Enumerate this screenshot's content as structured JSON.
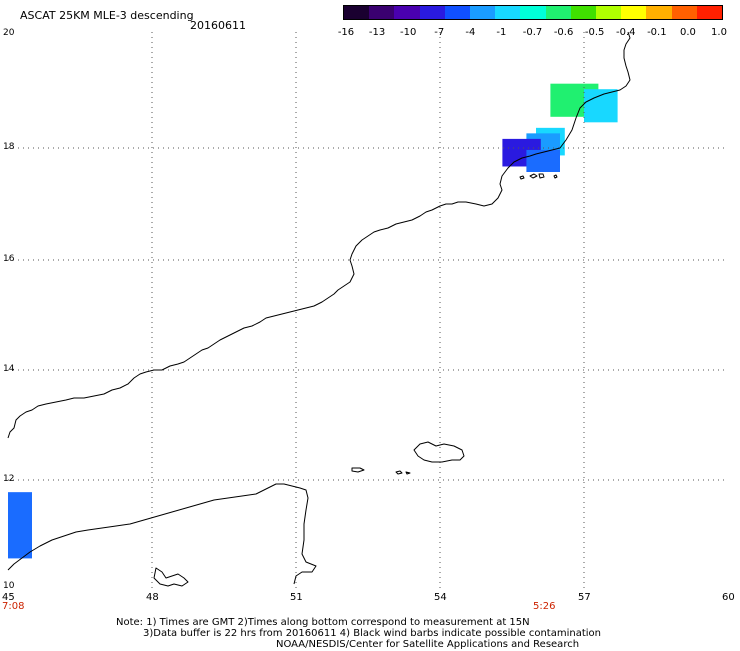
{
  "header": {
    "product_title": "ASCAT 25KM MLE-3 descending",
    "date": "20160611"
  },
  "colorbar": {
    "colors": [
      "#1a0030",
      "#3a0070",
      "#4a00b0",
      "#2a1ae0",
      "#1050ff",
      "#1a9cff",
      "#18d8ff",
      "#00ffd8",
      "#20f070",
      "#40e000",
      "#b0ff00",
      "#ffff00",
      "#ffb000",
      "#ff6000",
      "#ff2000"
    ],
    "tick_labels": [
      "-16",
      "-13",
      "-10",
      "-7",
      "-4",
      "-1",
      "-0.7",
      "-0.6",
      "-0.5",
      "-0.4",
      "-0.1",
      "0.0",
      "1.0"
    ]
  },
  "axes": {
    "lat_labels": [
      "20",
      "18",
      "16",
      "14",
      "12",
      "10"
    ],
    "lon_labels": [
      "45",
      "48",
      "51",
      "54",
      "57",
      "60"
    ],
    "time_labels": [
      "7:08",
      "5:26"
    ]
  },
  "footer": {
    "note_line1": "Note: 1) Times are GMT 2)Times along bottom correspond to measurement at 15N",
    "note_line2": "3)Data buffer is 22 hrs from 20160611 4) Black wind barbs indicate possible contamination",
    "credit": "NOAA/NESDIS/Center for Satellite Applications and Research"
  },
  "map": {
    "lon_range": [
      45,
      60
    ],
    "lat_range": [
      10,
      20
    ],
    "grid": "dotted",
    "swaths": [
      {
        "lon": [
          45.0,
          45.5
        ],
        "lat": [
          10.5,
          11.7
        ],
        "color": "#1a6cff"
      },
      {
        "lon": [
          56.3,
          57.3
        ],
        "lat": [
          18.5,
          19.1
        ],
        "color": "#20f070"
      },
      {
        "lon": [
          57.0,
          57.7
        ],
        "lat": [
          18.4,
          19.0
        ],
        "color": "#18d8ff"
      },
      {
        "lon": [
          56.0,
          56.6
        ],
        "lat": [
          17.8,
          18.3
        ],
        "color": "#18d8ff"
      },
      {
        "lon": [
          55.8,
          56.5
        ],
        "lat": [
          17.7,
          18.2
        ],
        "color": "#1a9cff"
      },
      {
        "lon": [
          55.3,
          56.1
        ],
        "lat": [
          17.6,
          18.1
        ],
        "color": "#2a1ae0"
      },
      {
        "lon": [
          55.8,
          56.5
        ],
        "lat": [
          17.5,
          17.9
        ],
        "color": "#1a6cff"
      }
    ]
  }
}
